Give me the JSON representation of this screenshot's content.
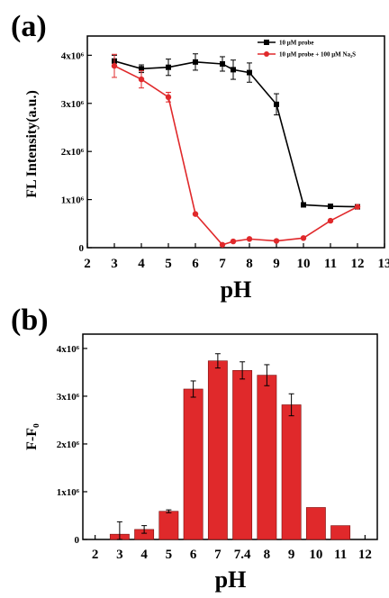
{
  "chart_data": [
    {
      "panel_label": "(a)",
      "type": "line",
      "xlabel": "pH",
      "ylabel": "FL Intensity(a.u.)",
      "xlim": [
        2,
        13
      ],
      "ylim": [
        0,
        4400000
      ],
      "x_ticks": [
        "2",
        "3",
        "4",
        "5",
        "6",
        "7",
        "8",
        "9",
        "10",
        "11",
        "12",
        "13"
      ],
      "y_ticks": [
        {
          "value": 0,
          "label": "0"
        },
        {
          "value": 1000000,
          "label": "1x10⁶"
        },
        {
          "value": 2000000,
          "label": "2x10⁶"
        },
        {
          "value": 3000000,
          "label": "3x10⁶"
        },
        {
          "value": 4000000,
          "label": "4x10⁶"
        }
      ],
      "legend_position": "top-right",
      "series": [
        {
          "name": "10 μM probe",
          "color": "#000000",
          "marker": "square",
          "x": [
            3,
            4,
            5,
            6,
            7,
            7.4,
            8,
            9,
            10,
            11,
            12
          ],
          "y": [
            3880000,
            3720000,
            3750000,
            3860000,
            3820000,
            3700000,
            3640000,
            2980000,
            890000,
            860000,
            850000
          ],
          "err": [
            120000,
            80000,
            170000,
            170000,
            150000,
            200000,
            200000,
            220000,
            0,
            0,
            0
          ]
        },
        {
          "name": "10 μM probe + 100 μM Na₂S",
          "color": "#e0292b",
          "marker": "circle",
          "x": [
            3,
            4,
            5,
            6,
            7,
            7.4,
            8,
            9,
            10,
            11,
            12
          ],
          "y": [
            3780000,
            3500000,
            3130000,
            700000,
            60000,
            130000,
            180000,
            140000,
            200000,
            560000,
            850000
          ],
          "err": [
            240000,
            180000,
            100000,
            0,
            0,
            0,
            0,
            0,
            0,
            0,
            0
          ]
        }
      ]
    },
    {
      "panel_label": "(b)",
      "type": "bar",
      "xlabel": "pH",
      "ylabel": "F-F₀",
      "ylim": [
        0,
        4300000
      ],
      "x_ticks": [
        "2",
        "3",
        "4",
        "5",
        "6",
        "7",
        "7.4",
        "8",
        "9",
        "10",
        "11",
        "12"
      ],
      "y_ticks": [
        {
          "value": 0,
          "label": "0"
        },
        {
          "value": 1000000,
          "label": "1x10⁶"
        },
        {
          "value": 2000000,
          "label": "2x10⁶"
        },
        {
          "value": 3000000,
          "label": "3x10⁶"
        },
        {
          "value": 4000000,
          "label": "4x10⁶"
        }
      ],
      "bar_color": "#e0292b",
      "categories": [
        "3",
        "4",
        "5",
        "6",
        "7",
        "7.4",
        "8",
        "9",
        "10",
        "11"
      ],
      "values": [
        110000,
        210000,
        590000,
        3150000,
        3740000,
        3540000,
        3440000,
        2820000,
        670000,
        290000
      ],
      "err": [
        260000,
        80000,
        30000,
        170000,
        150000,
        180000,
        220000,
        230000,
        0,
        0
      ]
    }
  ]
}
